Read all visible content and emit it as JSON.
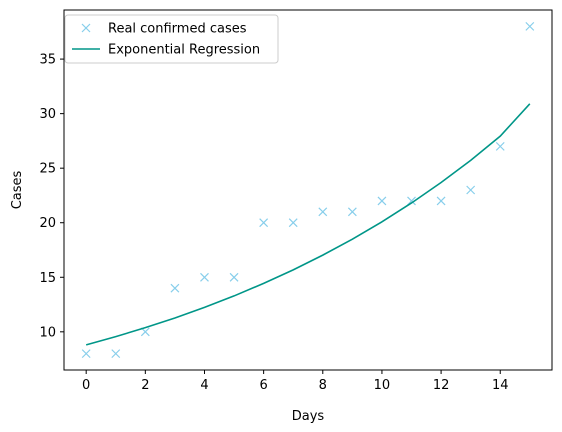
{
  "chart_data": {
    "type": "scatter",
    "title": "",
    "xlabel": "Days",
    "ylabel": "Cases",
    "xlim": [
      -0.75,
      15.75
    ],
    "ylim": [
      6.5,
      39.5
    ],
    "xticks": [
      0,
      2,
      4,
      6,
      8,
      10,
      12,
      14
    ],
    "yticks": [
      10,
      15,
      20,
      25,
      30,
      35
    ],
    "grid": false,
    "legend_position": "upper-left",
    "series": [
      {
        "name": "Real confirmed cases",
        "kind": "markers",
        "marker": "x",
        "color": "#87ceeb",
        "x": [
          0,
          1,
          2,
          3,
          4,
          5,
          6,
          7,
          8,
          9,
          10,
          11,
          12,
          13,
          14,
          15
        ],
        "y": [
          8,
          8,
          10,
          14,
          15,
          15,
          20,
          20,
          21,
          21,
          22,
          22,
          22,
          23,
          27,
          38
        ]
      },
      {
        "name": "Exponential Regression",
        "kind": "line",
        "color": "#009688",
        "x": [
          0,
          1,
          2,
          3,
          4,
          5,
          6,
          7,
          8,
          9,
          10,
          11,
          12,
          13,
          14,
          15
        ],
        "y": [
          8.8,
          9.56,
          10.38,
          11.27,
          12.24,
          13.29,
          14.44,
          15.68,
          17.03,
          18.49,
          20.08,
          21.81,
          23.69,
          25.72,
          27.94,
          30.9
        ]
      }
    ]
  }
}
